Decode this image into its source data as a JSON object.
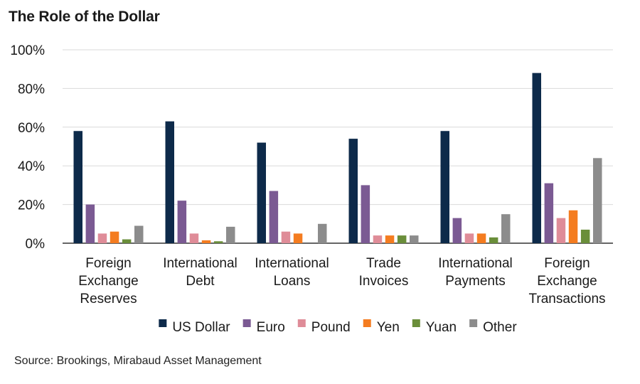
{
  "title": "The Role of the Dollar",
  "source": "Source: Brookings, Mirabaud Asset Management",
  "chart_data": {
    "type": "bar",
    "categories": [
      [
        "Foreign",
        "Exchange",
        "Reserves"
      ],
      [
        "International",
        "Debt"
      ],
      [
        "International",
        "Loans"
      ],
      [
        "Trade",
        "Invoices"
      ],
      [
        "International",
        "Payments"
      ],
      [
        "Foreign",
        "Exchange",
        "Transactions"
      ]
    ],
    "series": [
      {
        "name": "US Dollar",
        "color": "#0d2a4a",
        "values": [
          58,
          63,
          52,
          54,
          58,
          88
        ]
      },
      {
        "name": "Euro",
        "color": "#7b5a93",
        "values": [
          20,
          22,
          27,
          30,
          13,
          31
        ]
      },
      {
        "name": "Pound",
        "color": "#df8c98",
        "values": [
          5,
          5,
          6,
          4,
          5,
          13
        ]
      },
      {
        "name": "Yen",
        "color": "#f47c20",
        "values": [
          6,
          1.5,
          5,
          4,
          5,
          17
        ]
      },
      {
        "name": "Yuan",
        "color": "#6a8e3a",
        "values": [
          2,
          1,
          0,
          4,
          3,
          7
        ]
      },
      {
        "name": "Other",
        "color": "#8c8c8c",
        "values": [
          9,
          8.5,
          10,
          4,
          15,
          44
        ]
      }
    ],
    "ylim": [
      0,
      100
    ],
    "yticks": [
      "0%",
      "20%",
      "40%",
      "60%",
      "80%",
      "100%"
    ],
    "ytick_values": [
      0,
      20,
      40,
      60,
      80,
      100
    ],
    "grid": true,
    "legend_position": "bottom"
  }
}
